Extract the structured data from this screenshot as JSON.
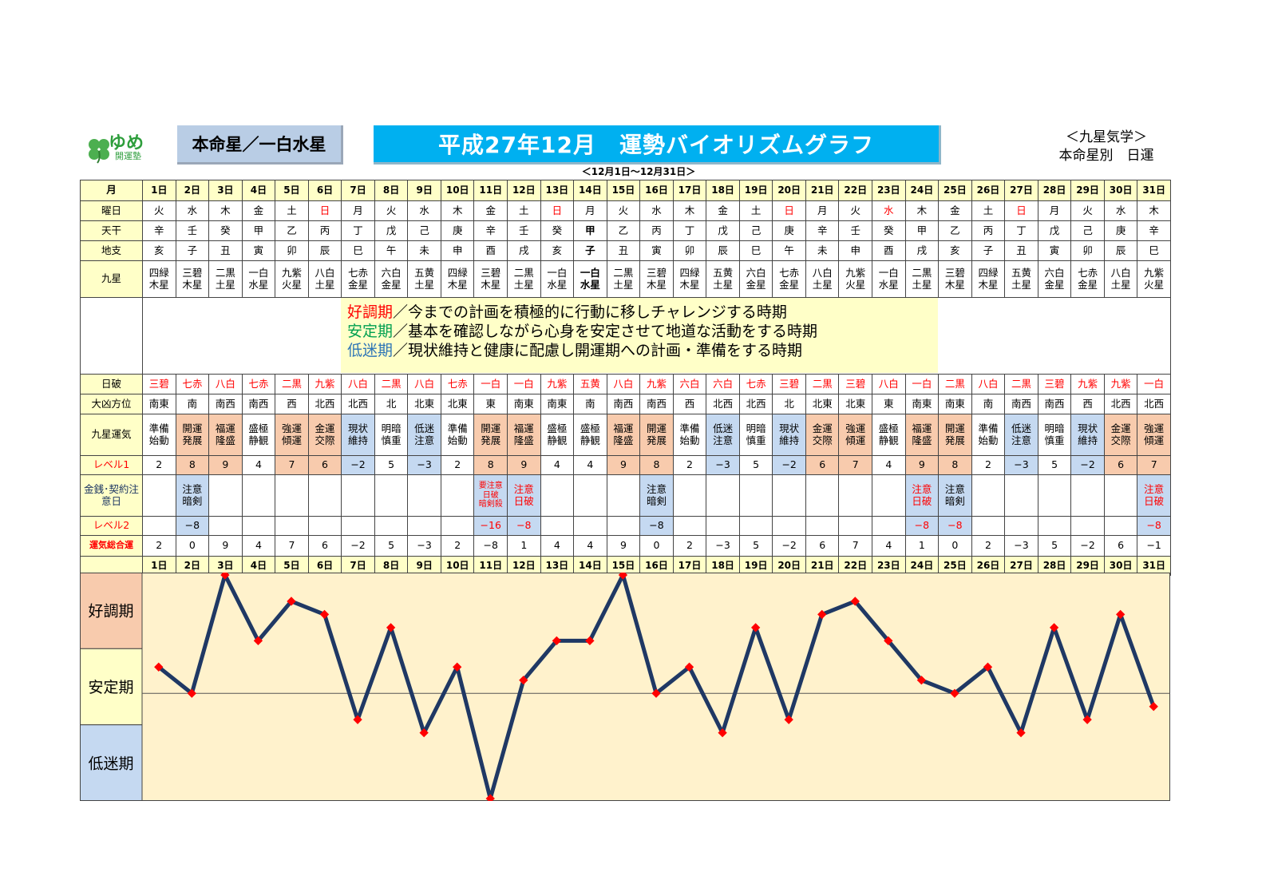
{
  "logo": {
    "text": "ゆめ",
    "sub": "開運塾"
  },
  "header": {
    "honmei": "本命星／一白水星",
    "title": "平成27年12月　運勢バイオリズムグラフ",
    "subtitle": "＜12月1日～12月31日＞",
    "top_right_1": "＜九星気学＞",
    "top_right_2": "本命星別　日運"
  },
  "row_labels": {
    "month": "月",
    "weekday": "曜日",
    "tenkan": "天干",
    "chishi": "地支",
    "kyusei": "九星",
    "nippa": "日破",
    "daikyo": "大凶方位",
    "unki": "九星運気",
    "level1": "レベル1",
    "caution": "金銭･契約注意日",
    "level2": "レベル2",
    "total": "運気総合運"
  },
  "legend": [
    {
      "head": "好調期",
      "body": "／今までの計画を積極的に行動に移しチャレンジする時期",
      "color": "#ff0000"
    },
    {
      "head": "安定期",
      "body": "／基本を確認しながら心身を安定させて地道な活動をする時期",
      "color": "#00a050"
    },
    {
      "head": "低迷期",
      "body": "／現状維持と健康に配慮し開運期への計画・準備をする時期",
      "color": "#2e75b6"
    }
  ],
  "days": [
    "1日",
    "2日",
    "3日",
    "4日",
    "5日",
    "6日",
    "7日",
    "8日",
    "9日",
    "10日",
    "11日",
    "12日",
    "13日",
    "14日",
    "15日",
    "16日",
    "17日",
    "18日",
    "19日",
    "20日",
    "21日",
    "22日",
    "23日",
    "24日",
    "25日",
    "26日",
    "27日",
    "28日",
    "29日",
    "30日",
    "31日"
  ],
  "weekday": [
    "火",
    "水",
    "木",
    "金",
    "土",
    "日",
    "月",
    "火",
    "水",
    "木",
    "金",
    "土",
    "日",
    "月",
    "火",
    "水",
    "木",
    "金",
    "土",
    "日",
    "月",
    "火",
    "水",
    "木",
    "金",
    "土",
    "日",
    "月",
    "火",
    "水",
    "木"
  ],
  "weekday_red": [
    5,
    12,
    19,
    22,
    26
  ],
  "tenkan": [
    "辛",
    "壬",
    "癸",
    "甲",
    "乙",
    "丙",
    "丁",
    "戊",
    "己",
    "庚",
    "辛",
    "壬",
    "癸",
    "甲",
    "乙",
    "丙",
    "丁",
    "戊",
    "己",
    "庚",
    "辛",
    "壬",
    "癸",
    "甲",
    "乙",
    "丙",
    "丁",
    "戊",
    "己",
    "庚",
    "辛"
  ],
  "chishi": [
    "亥",
    "子",
    "丑",
    "寅",
    "卯",
    "辰",
    "巳",
    "午",
    "未",
    "申",
    "酉",
    "戌",
    "亥",
    "子",
    "丑",
    "寅",
    "卯",
    "辰",
    "巳",
    "午",
    "未",
    "申",
    "酉",
    "戌",
    "亥",
    "子",
    "丑",
    "寅",
    "卯",
    "辰",
    "巳"
  ],
  "bold_col": 13,
  "kyusei": [
    [
      "四緑",
      "木星"
    ],
    [
      "三碧",
      "木星"
    ],
    [
      "二黒",
      "土星"
    ],
    [
      "一白",
      "水星"
    ],
    [
      "九紫",
      "火星"
    ],
    [
      "八白",
      "土星"
    ],
    [
      "七赤",
      "金星"
    ],
    [
      "六白",
      "金星"
    ],
    [
      "五黄",
      "土星"
    ],
    [
      "四緑",
      "木星"
    ],
    [
      "三碧",
      "木星"
    ],
    [
      "二黒",
      "土星"
    ],
    [
      "一白",
      "水星"
    ],
    [
      "一白",
      "水星"
    ],
    [
      "二黒",
      "土星"
    ],
    [
      "三碧",
      "木星"
    ],
    [
      "四緑",
      "木星"
    ],
    [
      "五黄",
      "土星"
    ],
    [
      "六白",
      "金星"
    ],
    [
      "七赤",
      "金星"
    ],
    [
      "八白",
      "土星"
    ],
    [
      "九紫",
      "火星"
    ],
    [
      "一白",
      "水星"
    ],
    [
      "二黒",
      "土星"
    ],
    [
      "三碧",
      "木星"
    ],
    [
      "四緑",
      "木星"
    ],
    [
      "五黄",
      "土星"
    ],
    [
      "六白",
      "金星"
    ],
    [
      "七赤",
      "金星"
    ],
    [
      "八白",
      "土星"
    ],
    [
      "九紫",
      "火星"
    ]
  ],
  "nippa": [
    "三碧",
    "七赤",
    "八白",
    "七赤",
    "二黒",
    "九紫",
    "八白",
    "二黒",
    "八白",
    "七赤",
    "一白",
    "一白",
    "九紫",
    "五黄",
    "八白",
    "九紫",
    "六白",
    "六白",
    "七赤",
    "三碧",
    "二黒",
    "三碧",
    "八白",
    "一白",
    "二黒",
    "八白",
    "二黒",
    "三碧",
    "九紫",
    "九紫",
    "一白"
  ],
  "daikyo": [
    "南東",
    "南",
    "南西",
    "南西",
    "西",
    "北西",
    "北西",
    "北",
    "北東",
    "北東",
    "東",
    "南東",
    "南東",
    "南",
    "南西",
    "南西",
    "西",
    "北西",
    "北西",
    "北",
    "北東",
    "北東",
    "東",
    "南東",
    "南東",
    "南",
    "南西",
    "南西",
    "西",
    "北西",
    "北西"
  ],
  "unki": [
    [
      "準備",
      "始動"
    ],
    [
      "開運",
      "発展"
    ],
    [
      "福運",
      "隆盛"
    ],
    [
      "盛極",
      "静観"
    ],
    [
      "強運",
      "傾運"
    ],
    [
      "金運",
      "交際"
    ],
    [
      "現状",
      "維持"
    ],
    [
      "明暗",
      "慎重"
    ],
    [
      "低迷",
      "注意"
    ],
    [
      "準備",
      "始動"
    ],
    [
      "開運",
      "発展"
    ],
    [
      "福運",
      "隆盛"
    ],
    [
      "盛極",
      "静観"
    ],
    [
      "盛極",
      "静観"
    ],
    [
      "福運",
      "隆盛"
    ],
    [
      "開運",
      "発展"
    ],
    [
      "準備",
      "始動"
    ],
    [
      "低迷",
      "注意"
    ],
    [
      "明暗",
      "慎重"
    ],
    [
      "現状",
      "維持"
    ],
    [
      "金運",
      "交際"
    ],
    [
      "強運",
      "傾運"
    ],
    [
      "盛極",
      "静観"
    ],
    [
      "福運",
      "隆盛"
    ],
    [
      "開運",
      "発展"
    ],
    [
      "準備",
      "始動"
    ],
    [
      "低迷",
      "注意"
    ],
    [
      "明暗",
      "慎重"
    ],
    [
      "現状",
      "維持"
    ],
    [
      "金運",
      "交際"
    ],
    [
      "強運",
      "傾運"
    ]
  ],
  "level1": [
    "2",
    "8",
    "9",
    "4",
    "7",
    "6",
    "−2",
    "5",
    "−3",
    "2",
    "8",
    "9",
    "4",
    "4",
    "9",
    "8",
    "2",
    "−3",
    "5",
    "−2",
    "6",
    "7",
    "4",
    "9",
    "8",
    "2",
    "−3",
    "5",
    "−2",
    "6",
    "7"
  ],
  "caution": [
    [],
    [
      "注意",
      "暗剣"
    ],
    [],
    [],
    [],
    [],
    [],
    [],
    [],
    [],
    [
      "要注意",
      "日破",
      "暗剣殺"
    ],
    [
      "注意",
      "日破"
    ],
    [],
    [],
    [],
    [
      "注意",
      "暗剣"
    ],
    [],
    [],
    [],
    [],
    [],
    [],
    [],
    [
      "注意",
      "日破"
    ],
    [
      "注意",
      "暗剣"
    ],
    [],
    [],
    [],
    [],
    [],
    [
      "注意",
      "日破"
    ]
  ],
  "caution_red": [
    10,
    11,
    23,
    30
  ],
  "level2": [
    "",
    "−8",
    "",
    "",
    "",
    "",
    "",
    "",
    "",
    "",
    "−16",
    "−8",
    "",
    "",
    "",
    "−8",
    "",
    "",
    "",
    "",
    "",
    "",
    "",
    "−8",
    "−8",
    "",
    "",
    "",
    "",
    "",
    "−8"
  ],
  "level2_red": [
    10,
    11,
    23,
    24,
    30
  ],
  "total": [
    "2",
    "0",
    "9",
    "4",
    "7",
    "6",
    "−2",
    "5",
    "−3",
    "2",
    "−8",
    "1",
    "4",
    "4",
    "9",
    "0",
    "2",
    "−3",
    "5",
    "−2",
    "6",
    "7",
    "4",
    "1",
    "0",
    "2",
    "−3",
    "5",
    "−2",
    "6",
    "−1"
  ],
  "bands": [
    "好調期",
    "安定期",
    "低迷期"
  ],
  "colors": {
    "good": "#f8cbad",
    "stable": "#ffffc8",
    "bad": "#c5d9f1",
    "line": "#1f3864",
    "marker": "#ff0000",
    "chart_bg": "#fff2cc"
  },
  "chart_data": {
    "type": "line",
    "x": [
      "1日",
      "2日",
      "3日",
      "4日",
      "5日",
      "6日",
      "7日",
      "8日",
      "9日",
      "10日",
      "11日",
      "12日",
      "13日",
      "14日",
      "15日",
      "16日",
      "17日",
      "18日",
      "19日",
      "20日",
      "21日",
      "22日",
      "23日",
      "24日",
      "25日",
      "26日",
      "27日",
      "28日",
      "29日",
      "30日",
      "31日"
    ],
    "series": [
      {
        "values": [
          2,
          0,
          9,
          4,
          7,
          6,
          -2,
          5,
          -3,
          2,
          -8,
          1,
          4,
          4,
          9,
          0,
          2,
          -3,
          5,
          -2,
          6,
          7,
          4,
          1,
          0,
          2,
          -3,
          5,
          -2,
          6,
          -1
        ]
      }
    ],
    "ylim": [
      -8,
      9
    ],
    "bands": [
      "好調期",
      "安定期",
      "低迷期"
    ],
    "title": "",
    "xlabel": "",
    "ylabel": ""
  }
}
